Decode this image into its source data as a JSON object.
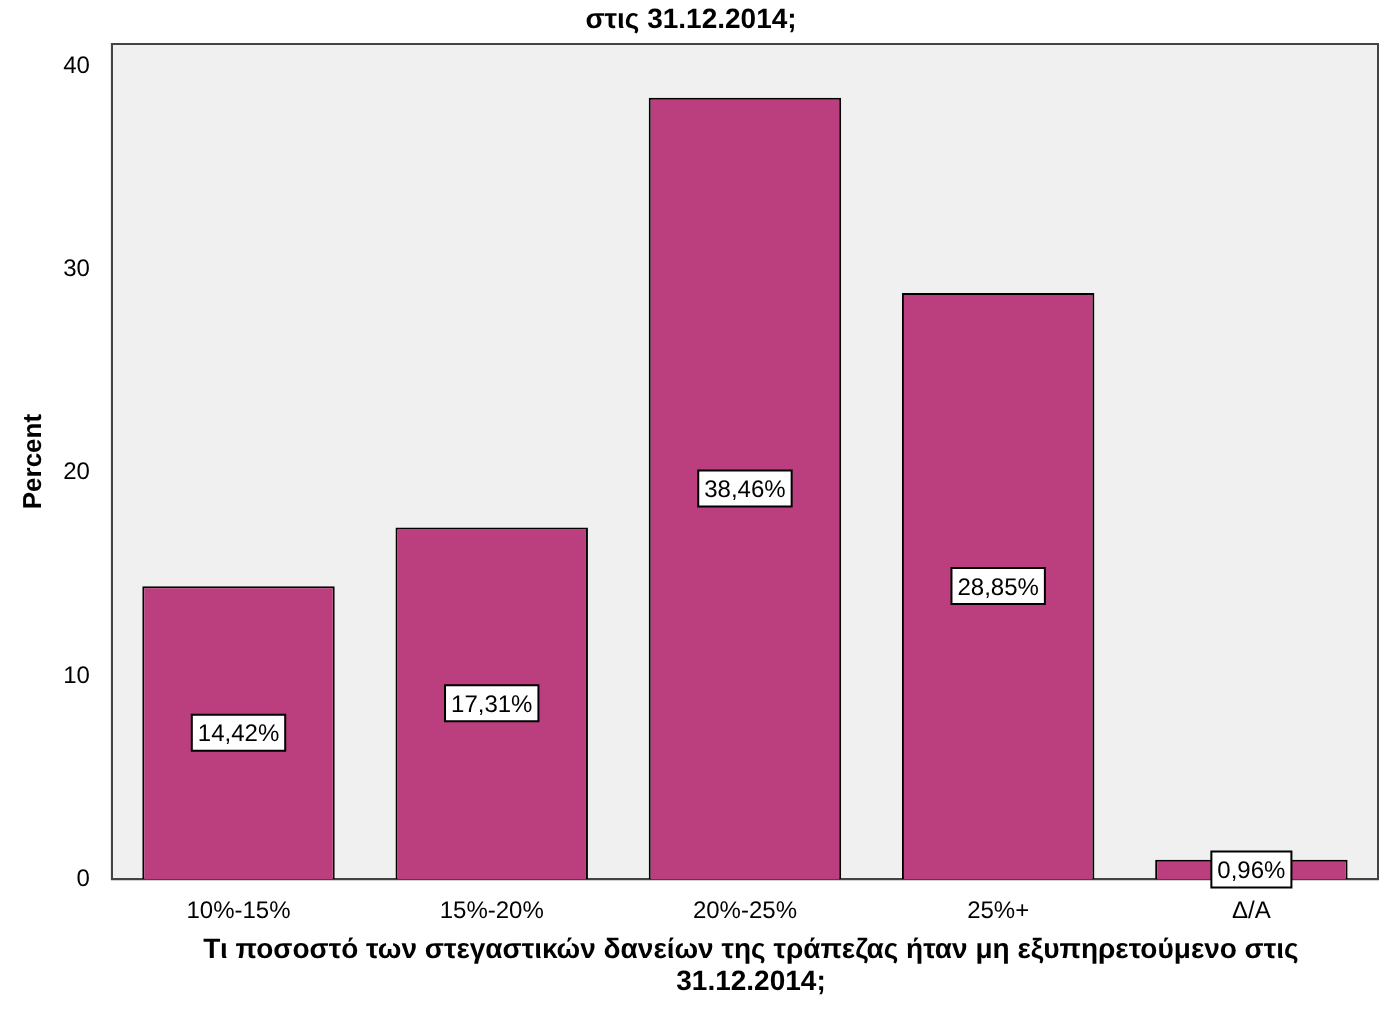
{
  "chart_data": {
    "type": "bar",
    "title": "στις 31.12.2014;",
    "xlabel": "Τι ποσοστό των στεγαστικών δανείων της τράπεζας ήταν μη εξυπηρετούμενο στις 31.12.2014;",
    "ylabel": "Percent",
    "categories": [
      "10%-15%",
      "15%-20%",
      "20%-25%",
      "25%+",
      "Δ/Α"
    ],
    "values": [
      14.42,
      17.31,
      38.46,
      28.85,
      0.96
    ],
    "value_labels": [
      "14,42%",
      "17,31%",
      "38,46%",
      "28,85%",
      "0,96%"
    ],
    "color": "#bb3f7e",
    "ylim": [
      0,
      41.1
    ],
    "yticks": [
      0,
      10,
      20,
      30,
      40
    ],
    "grid": false
  }
}
